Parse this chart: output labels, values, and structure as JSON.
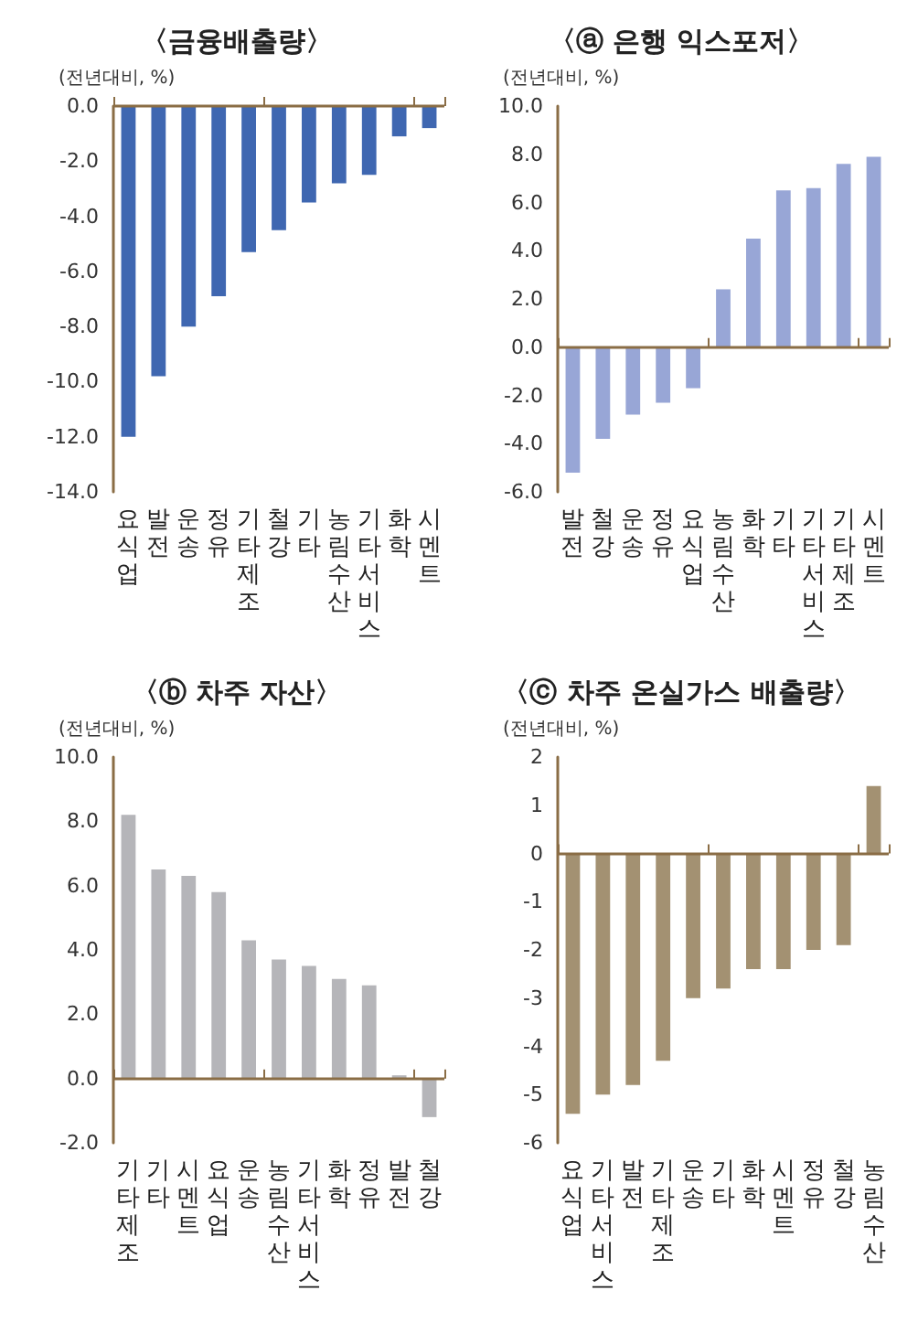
{
  "chart_data": [
    {
      "type": "bar",
      "title": "〈금융배출량〉",
      "ylabel": "(전년대비, %)",
      "categories": [
        "요식업",
        "발전",
        "운송",
        "정유",
        "기타제조",
        "철강",
        "기타",
        "농림수산",
        "기타서비스",
        "화학",
        "시멘트"
      ],
      "series": [
        {
          "color": "#3f67b1",
          "values": [
            -12.0,
            -9.8,
            -8.0,
            -6.9,
            -5.3,
            -4.5,
            -3.5,
            -2.8,
            -2.5,
            -1.1,
            -0.8
          ]
        }
      ],
      "ylim": [
        -14,
        0
      ],
      "yticks": [
        {
          "value": -14,
          "label": "-14.0"
        },
        {
          "value": -12,
          "label": "-12.0"
        },
        {
          "value": -10,
          "label": "-10.0"
        },
        {
          "value": -8,
          "label": "-8.0"
        },
        {
          "value": -6,
          "label": "-6.0"
        },
        {
          "value": -4,
          "label": "-4.0"
        },
        {
          "value": -2,
          "label": "-2.0"
        },
        {
          "value": 0,
          "label": "0.0"
        }
      ],
      "grid": false,
      "ref_lines": [
        {
          "axis": "y",
          "value": 0,
          "color": "#8a6d45"
        }
      ]
    },
    {
      "type": "bar",
      "title": "〈ⓐ 은행 익스포저〉",
      "ylabel": "(전년대비, %)",
      "categories": [
        "발전",
        "철강",
        "운송",
        "정유",
        "요식업",
        "농림수산",
        "화학",
        "기타",
        "기타서비스",
        "기타제조",
        "시멘트"
      ],
      "series": [
        {
          "color": "#98a6d6",
          "values": [
            -5.2,
            -3.8,
            -2.8,
            -2.3,
            -1.7,
            2.4,
            4.5,
            6.5,
            6.6,
            7.6,
            7.9
          ]
        }
      ],
      "ylim": [
        -6,
        10
      ],
      "yticks": [
        {
          "value": -6,
          "label": "-6.0"
        },
        {
          "value": -4,
          "label": "-4.0"
        },
        {
          "value": -2,
          "label": "-2.0"
        },
        {
          "value": 0,
          "label": "0.0"
        },
        {
          "value": 2,
          "label": "2.0"
        },
        {
          "value": 4,
          "label": "4.0"
        },
        {
          "value": 6,
          "label": "6.0"
        },
        {
          "value": 8,
          "label": "8.0"
        },
        {
          "value": 10,
          "label": "10.0"
        }
      ],
      "grid": false,
      "ref_lines": [
        {
          "axis": "y",
          "value": 0,
          "color": "#8a6d45"
        }
      ]
    },
    {
      "type": "bar",
      "title": "〈ⓑ 차주 자산〉",
      "ylabel": "(전년대비, %)",
      "categories": [
        "기타제조",
        "기타",
        "시멘트",
        "요식업",
        "운송",
        "농림수산",
        "기타서비스",
        "화학",
        "정유",
        "발전",
        "철강"
      ],
      "series": [
        {
          "color": "#b5b5b9",
          "values": [
            8.2,
            6.5,
            6.3,
            5.8,
            4.3,
            3.7,
            3.5,
            3.1,
            2.9,
            0.1,
            -1.2
          ]
        }
      ],
      "ylim": [
        -2,
        10
      ],
      "yticks": [
        {
          "value": -2,
          "label": "-2.0"
        },
        {
          "value": 0,
          "label": "0.0"
        },
        {
          "value": 2,
          "label": "2.0"
        },
        {
          "value": 4,
          "label": "4.0"
        },
        {
          "value": 6,
          "label": "6.0"
        },
        {
          "value": 8,
          "label": "8.0"
        },
        {
          "value": 10,
          "label": "10.0"
        }
      ],
      "grid": false,
      "ref_lines": [
        {
          "axis": "y",
          "value": 0,
          "color": "#8a6d45"
        }
      ]
    },
    {
      "type": "bar",
      "title": "〈ⓒ 차주 온실가스 배출량〉",
      "ylabel": "(전년대비, %)",
      "categories": [
        "요식업",
        "기타서비스",
        "발전",
        "기타제조",
        "운송",
        "기타",
        "화학",
        "시멘트",
        "정유",
        "철강",
        "농림수산"
      ],
      "series": [
        {
          "color": "#a39172",
          "values": [
            -5.4,
            -5.0,
            -4.8,
            -4.3,
            -3.0,
            -2.8,
            -2.4,
            -2.4,
            -2.0,
            -1.9,
            1.4
          ]
        }
      ],
      "ylim": [
        -6,
        2
      ],
      "yticks": [
        -6,
        -5,
        -4,
        -3,
        -2,
        -1,
        0,
        1,
        2
      ],
      "grid": false,
      "ref_lines": [
        {
          "axis": "y",
          "value": 0,
          "color": "#8a6d45"
        }
      ]
    }
  ]
}
